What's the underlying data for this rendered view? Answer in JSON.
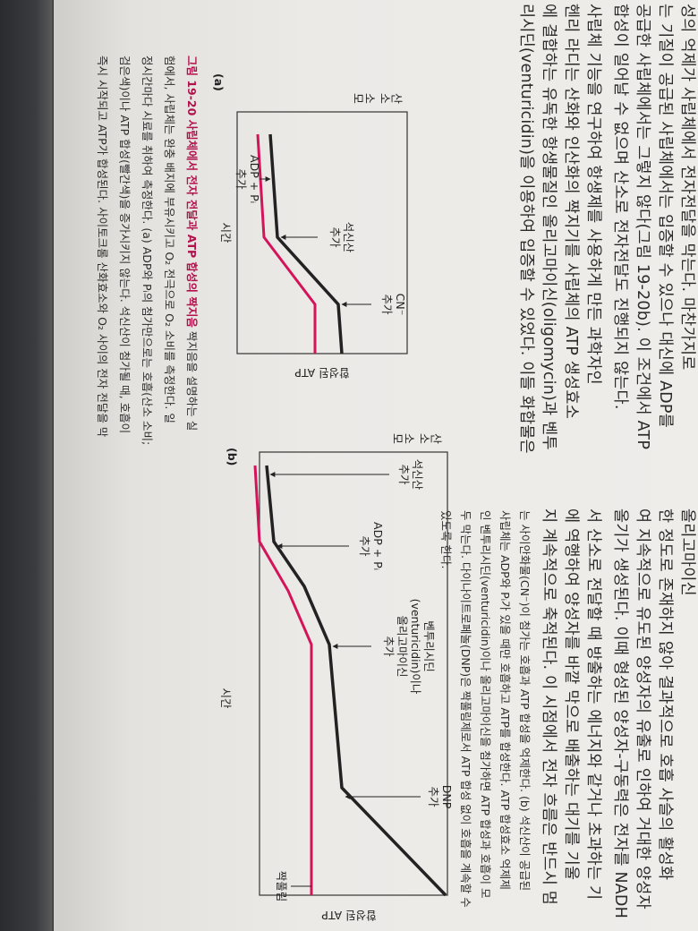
{
  "body_left": [
    "성의 억제가 사립체에서 전자전달을 막는다. 마찬가지로",
    "는 기질이 공급된 사립체에서는 입증할 수 있으나 대신에 ADP를",
    "공급한 사립체에서는 그렇지 않다(그림 19-20b). 이 조건에서 ATP",
    "합성이 일어날 수 없으며 산소로 전자전달도 진행되지 않는다.",
    "사립체 기능을 연구하여 항생제를 사용하게 만든 과학자인",
    "헨리 라디는 산화와 인산화의 짝지기를 사립체의 ATP 생성효소",
    "에 결합하는 유독한 항생물질인 올리고마이신(oligomycin)과 벤투",
    "리시딘(venturicidin)을 이용하여 입증할 수 있었다. 이들 화합물은"
  ],
  "body_right": [
    "올리고마이신",
    "한 정도로 존재하지 않아 결과적으로 호흡 사슬의 활성화",
    "여 지속적으로 유도된 양성자의 유출로 인하여 거대한 양성자",
    "올기가 생성된다. 이때 형성된 양성자-구동력은 전자를 NADH",
    "서 산소로 전달할 때 방출하는 에너지와 같거나 초과하는 기",
    "에 역행하여 양성자를 바깥 막으로 배출하는 대기를 기울",
    "지 계속적으로 축적된다. 이 시점에서 전자 흐름은 반드시 멈"
  ],
  "caption_a": {
    "heading": "그림 19-20 사립체에서 전자 전달과 ATP 합성의 짝지음",
    "lines": [
      " 짝지음을 설명하는 실",
      "험에서, 사립체는 완충 배지에 부유시키고 O₂ 전극으로 O₂ 소비를 측정한다. 일",
      "정시간마다 시료를 취하여 측정한다. (a) ADP와 Pᵢ의 첨가만으로는 호흡(산소 소비;",
      "검은색)이나 ATP 합성(빨간색)을 증가시키지 않는다. 석신산이 첨가될 때, 호흡이",
      "즉시 시작되고 ATP가 합성된다. 사이토크롬 산화효소와 O₂ 사이의 전자 전달을 막"
    ]
  },
  "caption_b": [
    "는 사이안화물(CN⁻)이 첨가는 호흡과 ATP 합성을 억제한다. (b) 석신산이 공급된",
    "사립체는 ADP와 Pᵢ가 있을 때만 호흡하고 ATP를 합성한다. ATP 합성효소 억제제",
    "인 벤투리시딘(venturicidin)이나 올리고마이신을 첨가하면 ATP 합성과 호흡이 모",
    "두 막는다. 다이나이트로페놀(DNP)은 짝풀림제로서 ATP 합성 없이 호흡을 계속할 수",
    "있도록 한다."
  ],
  "figure_a": {
    "label": "(a)",
    "y_label": "산소 소모",
    "y2_label": "합성된 ATP",
    "x_label": "시간",
    "annotations": [
      [
        "ADP + Pᵢ",
        "추가"
      ],
      [
        "석신산",
        "추가"
      ],
      [
        "CN⁻",
        "추가"
      ]
    ]
  },
  "figure_b": {
    "label": "(b)",
    "y_label": "산소 소모",
    "y2_label": "합성된 ATP",
    "x_label": "시간",
    "annotations": [
      [
        "석신산",
        "추가"
      ],
      [
        "ADP + Pᵢ",
        "추가"
      ],
      [
        "벤투리시딘",
        "(venturicidin)이나",
        "올리고마이신",
        "추가"
      ],
      [
        "DNP",
        "추가"
      ],
      [
        "짝풀림"
      ]
    ]
  }
}
